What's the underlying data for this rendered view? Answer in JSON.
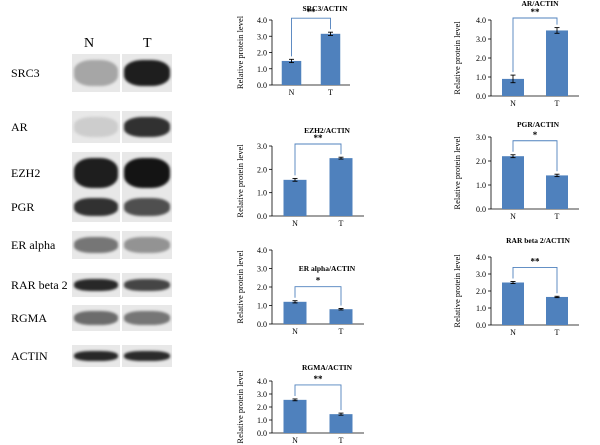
{
  "blot": {
    "lanes": [
      "N",
      "T"
    ],
    "rows": [
      {
        "label": "SRC3",
        "n": 0.25,
        "t": 0.95
      },
      {
        "label": "AR",
        "n": 0.05,
        "t": 0.85
      },
      {
        "label": "EZH2",
        "n": 0.95,
        "t": 1.0
      },
      {
        "label": "PGR",
        "n": 0.85,
        "t": 0.7
      },
      {
        "label": "ER alpha",
        "n": 0.5,
        "t": 0.35
      },
      {
        "label": "RAR beta 2",
        "n": 0.9,
        "t": 0.75
      },
      {
        "label": "RGMA",
        "n": 0.55,
        "t": 0.5
      },
      {
        "label": "ACTIN",
        "n": 0.9,
        "t": 0.88
      }
    ]
  },
  "colors": {
    "bar": "#4F81BD",
    "bracket": "#4F81BD"
  },
  "chart_data": [
    {
      "type": "bar",
      "title": "SRC3/ACTIN",
      "categories": [
        "N",
        "T"
      ],
      "values": [
        1.48,
        3.15
      ],
      "errors": [
        0.1,
        0.1
      ],
      "ylabel": "Relative protein level",
      "ylim": [
        0,
        4
      ],
      "yticks": [
        "0.0",
        "1.0",
        "2.0",
        "3.0",
        "4.0"
      ],
      "significance": "**"
    },
    {
      "type": "bar",
      "title": "AR/ACTIN",
      "categories": [
        "N",
        "T"
      ],
      "values": [
        0.9,
        3.45
      ],
      "errors": [
        0.2,
        0.15
      ],
      "ylabel": "Relative protein level",
      "ylim": [
        0,
        4
      ],
      "yticks": [
        "0.0",
        "1.0",
        "2.0",
        "3.0",
        "4.0"
      ],
      "significance": "**"
    },
    {
      "type": "bar",
      "title": "EZH2/ACTIN",
      "categories": [
        "N",
        "T"
      ],
      "values": [
        1.55,
        2.48
      ],
      "errors": [
        0.06,
        0.04
      ],
      "ylabel": "Relative protein level",
      "ylim": [
        0,
        3
      ],
      "yticks": [
        "0.0",
        "1.0",
        "2.0",
        "3.0"
      ],
      "significance": "**"
    },
    {
      "type": "bar",
      "title": "PGR/ACTIN",
      "categories": [
        "N",
        "T"
      ],
      "values": [
        2.2,
        1.4
      ],
      "errors": [
        0.06,
        0.05
      ],
      "ylabel": "Relative protein level",
      "ylim": [
        0,
        3
      ],
      "yticks": [
        "0.0",
        "1.0",
        "2.0",
        "3.0"
      ],
      "significance": "*"
    },
    {
      "type": "bar",
      "title": "ER alpha/ACTIN",
      "categories": [
        "N",
        "T"
      ],
      "values": [
        1.2,
        0.8
      ],
      "errors": [
        0.06,
        0.04
      ],
      "ylabel": "Relative protein level",
      "ylim": [
        0,
        4
      ],
      "yticks": [
        "0.0",
        "1.0",
        "2.0",
        "3.0",
        "4.0"
      ],
      "significance": "*"
    },
    {
      "type": "bar",
      "title": "RAR beta 2/ACTIN",
      "categories": [
        "N",
        "T"
      ],
      "values": [
        2.5,
        1.65
      ],
      "errors": [
        0.06,
        0.04
      ],
      "ylabel": "Relative protein level",
      "ylim": [
        0,
        4
      ],
      "yticks": [
        "0.0",
        "1.0",
        "2.0",
        "3.0",
        "4.0"
      ],
      "significance": "**"
    },
    {
      "type": "bar",
      "title": "RGMA/ACTIN",
      "categories": [
        "N",
        "T"
      ],
      "values": [
        2.55,
        1.45
      ],
      "errors": [
        0.07,
        0.08
      ],
      "ylabel": "Relative protein level",
      "ylim": [
        0,
        4
      ],
      "yticks": [
        "0.0",
        "1.0",
        "2.0",
        "3.0",
        "4.0"
      ],
      "significance": "**"
    }
  ]
}
